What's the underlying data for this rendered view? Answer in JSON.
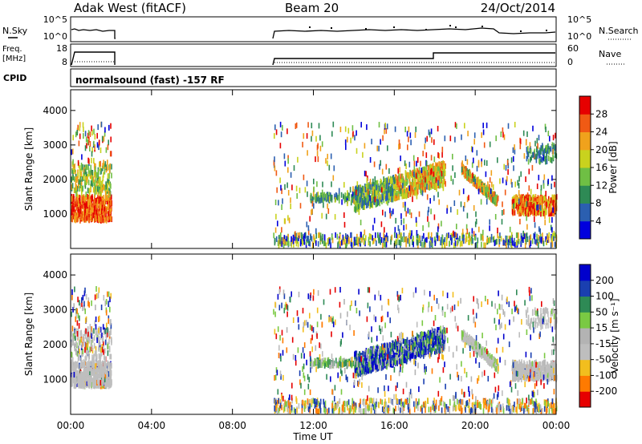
{
  "header": {
    "title": "Adak West (fitACF)",
    "beam": "Beam 20",
    "date": "24/Oct/2014"
  },
  "noise_panel": {
    "left_label": "N.Sky",
    "right_label": "N.Search",
    "left_ticks": [
      "10^5",
      "10^0"
    ],
    "right_ticks": [
      "10^5",
      "10^0"
    ]
  },
  "freq_panel": {
    "left_label_1": "Freq.",
    "left_label_2": "[MHz]",
    "right_label": "Nave",
    "left_ticks": [
      "18",
      "8"
    ],
    "right_ticks": [
      "60",
      "0"
    ]
  },
  "cpid_panel": {
    "left_label": "CPID",
    "text": "normalsound (fast) -157 RF"
  },
  "colors": {
    "power": [
      "#0000dd",
      "#2b5fb0",
      "#2e8a55",
      "#6fbf44",
      "#c9d21e",
      "#f0a21c",
      "#f05a14",
      "#e60000"
    ],
    "velocity": [
      "#e60000",
      "#ff7a00",
      "#f2be1e",
      "#bebebe",
      "#b3b3b3",
      "#7ac943",
      "#2e8a55",
      "#1a3fb0",
      "#0000cc"
    ]
  },
  "chart_data": [
    {
      "type": "heatmap",
      "name": "power",
      "ylabel": "Slant Range [km]",
      "y_ticks": [
        1000,
        2000,
        3000,
        4000
      ],
      "ylim": [
        0,
        4600
      ],
      "xlim_hours": [
        0,
        24
      ],
      "colorbar_label": "Power [dB]",
      "colorbar_ticks": [
        "4",
        "8",
        "12",
        "16",
        "20",
        "24",
        "28"
      ],
      "colorbar_range": [
        0,
        32
      ]
    },
    {
      "type": "heatmap",
      "name": "velocity",
      "ylabel": "Slant Range [km]",
      "y_ticks": [
        1000,
        2000,
        3000,
        4000
      ],
      "ylim": [
        0,
        4600
      ],
      "xlim_hours": [
        0,
        24
      ],
      "colorbar_label": "Velocity [m s⁻¹]",
      "colorbar_ticks": [
        "-200",
        "-100",
        "-50",
        "-15",
        "15",
        "50",
        "100",
        "200"
      ]
    }
  ],
  "x_axis": {
    "label": "Time UT",
    "ticks": [
      "00:00",
      "04:00",
      "08:00",
      "12:00",
      "16:00",
      "20:00",
      "00:00"
    ]
  }
}
